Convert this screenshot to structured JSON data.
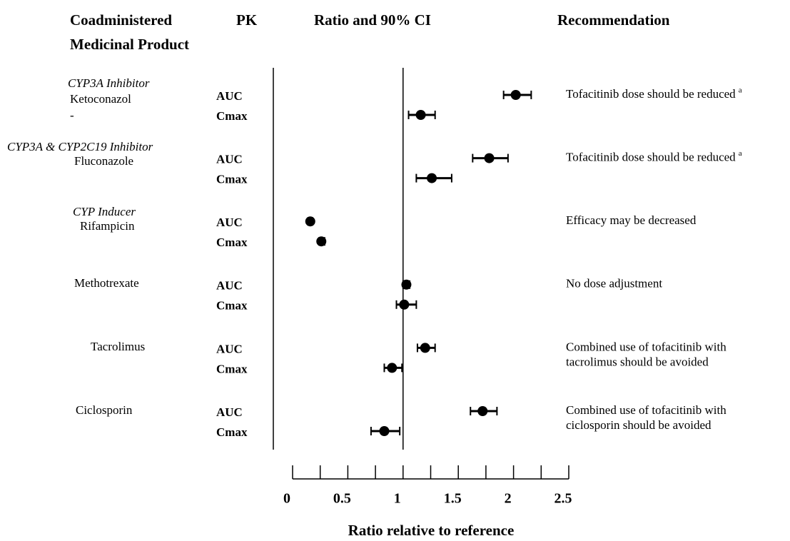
{
  "chart_data": {
    "type": "forest",
    "headers": [
      "Coadministered",
      "Medicinal Product",
      "PK",
      "Ratio and 90% CI",
      "Recommendation"
    ],
    "x_label": "Ratio relative to reference",
    "xlim": [
      0,
      2.5
    ],
    "xticks": [
      0,
      0.5,
      1,
      1.5,
      2,
      2.5
    ],
    "xticks_minor": [
      0.25,
      0.75,
      1.25,
      1.75,
      2.25
    ],
    "reference": 1,
    "color": "#000000",
    "groups": [
      {
        "class": "CYP3A Inhibitor",
        "drug": "Ketoconazol",
        "note": "-",
        "recommendation": [
          "Tofacitinib dose should be reduced"
        ],
        "footnote": "a",
        "rows": [
          {
            "pk": "AUC",
            "value": 2.02,
            "ci_low": 1.91,
            "ci_high": 2.16
          },
          {
            "pk": "Cmax",
            "value": 1.16,
            "ci_low": 1.05,
            "ci_high": 1.29
          }
        ]
      },
      {
        "class": "CYP3A & CYP2C19 Inhibitor",
        "drug": "Fluconazole",
        "recommendation": [
          "Tofacitinib dose should be reduced"
        ],
        "footnote": "a",
        "rows": [
          {
            "pk": "AUC",
            "value": 1.78,
            "ci_low": 1.63,
            "ci_high": 1.95
          },
          {
            "pk": "Cmax",
            "value": 1.26,
            "ci_low": 1.12,
            "ci_high": 1.44
          }
        ]
      },
      {
        "class": "CYP Inducer",
        "drug": "Rifampicin",
        "recommendation": [
          "Efficacy may be decreased"
        ],
        "rows": [
          {
            "pk": "AUC",
            "value": 0.16,
            "ci_low": 0.14,
            "ci_high": 0.18
          },
          {
            "pk": "Cmax",
            "value": 0.26,
            "ci_low": 0.24,
            "ci_high": 0.29
          }
        ]
      },
      {
        "drug": "Methotrexate",
        "recommendation": [
          "No dose adjustment"
        ],
        "rows": [
          {
            "pk": "AUC",
            "value": 1.03,
            "ci_low": 1.0,
            "ci_high": 1.06
          },
          {
            "pk": "Cmax",
            "value": 1.01,
            "ci_low": 0.94,
            "ci_high": 1.12
          }
        ]
      },
      {
        "drug": "Tacrolimus",
        "recommendation": [
          "Combined use of tofacitinib with",
          "tacrolimus should be avoided"
        ],
        "rows": [
          {
            "pk": "AUC",
            "value": 1.2,
            "ci_low": 1.13,
            "ci_high": 1.29
          },
          {
            "pk": "Cmax",
            "value": 0.9,
            "ci_low": 0.83,
            "ci_high": 0.99
          }
        ]
      },
      {
        "drug": "Ciclosporin",
        "recommendation": [
          "Combined use of tofacitinib with",
          "ciclosporin should be avoided"
        ],
        "rows": [
          {
            "pk": "AUC",
            "value": 1.72,
            "ci_low": 1.61,
            "ci_high": 1.85
          },
          {
            "pk": "Cmax",
            "value": 0.83,
            "ci_low": 0.71,
            "ci_high": 0.97
          }
        ]
      }
    ]
  }
}
